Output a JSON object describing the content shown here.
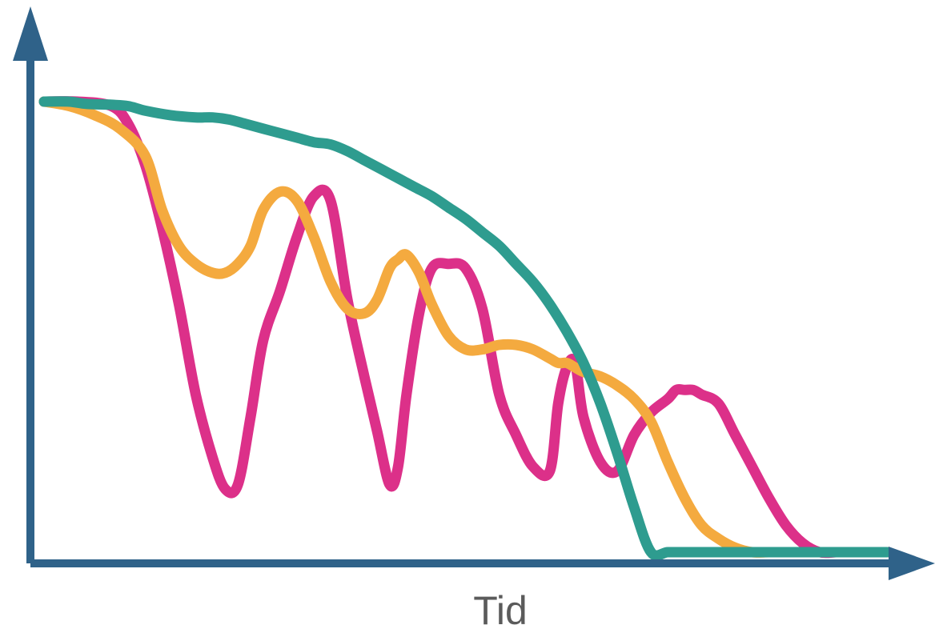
{
  "chart_data": {
    "type": "line",
    "title": "",
    "xlabel": "Tid",
    "ylabel": "",
    "grid": false,
    "legend": "none",
    "xlim": [
      0,
      100
    ],
    "ylim": [
      0,
      100
    ],
    "axis_color": "#2f6289",
    "series": [
      {
        "color": "#dc3089",
        "x": [
          0,
          4,
          8,
          10,
          12,
          14,
          16,
          18,
          20,
          21.5,
          23,
          24.5,
          26,
          28,
          30,
          32,
          34,
          36,
          38,
          39.5,
          41,
          42,
          43,
          44.5,
          46,
          48,
          50,
          52,
          54,
          56,
          58,
          60,
          61,
          62,
          63,
          64,
          66,
          68,
          70,
          72,
          74,
          75,
          76,
          77,
          78,
          80,
          82,
          84,
          86,
          88,
          90,
          92,
          94,
          95,
          96,
          98,
          99,
          100
        ],
        "y": [
          100,
          100,
          99,
          95,
          86,
          72,
          55,
          35,
          21,
          14,
          15,
          30,
          47,
          58,
          70,
          79,
          78,
          56,
          39,
          27,
          15,
          19,
          35,
          53,
          63,
          64,
          63,
          54,
          35,
          26,
          19,
          18,
          33,
          41,
          42,
          30,
          20,
          18,
          26,
          31,
          34,
          36,
          36,
          36,
          35,
          33,
          26,
          19,
          12,
          6,
          2,
          0,
          0,
          0,
          0,
          0,
          0,
          0
        ]
      },
      {
        "color": "#f4aa3f",
        "x": [
          0,
          3,
          6,
          9,
          12,
          14,
          16,
          18,
          20,
          21.5,
          23,
          24.5,
          26,
          28,
          30,
          32,
          34,
          36,
          38,
          39.5,
          41,
          42,
          43,
          44.5,
          46,
          48,
          50,
          52,
          54,
          56,
          58,
          60,
          61,
          62,
          63,
          64,
          66,
          68,
          70,
          72,
          74,
          76,
          78,
          80,
          82,
          84,
          86,
          88,
          90,
          92,
          94,
          95,
          96,
          97,
          98,
          99,
          100
        ],
        "y": [
          100,
          99,
          97,
          94,
          88,
          76,
          68,
          64,
          62,
          62,
          64,
          68,
          76,
          80,
          78,
          70,
          60,
          54,
          53,
          56,
          63,
          65,
          66,
          62,
          55,
          48,
          45,
          45,
          46,
          46,
          45,
          43,
          42,
          42,
          41,
          40,
          39,
          37,
          34,
          29,
          20,
          12,
          6,
          3,
          1,
          0,
          0,
          0,
          0,
          0,
          0,
          0,
          0,
          0,
          0,
          0,
          0
        ]
      },
      {
        "color": "#2e9c8f",
        "x": [
          0,
          3,
          5,
          8,
          10,
          12,
          15,
          18,
          20,
          22,
          24,
          26,
          28,
          30,
          32,
          34,
          36,
          38,
          40,
          42,
          44,
          46,
          48,
          50,
          52,
          54,
          56,
          58,
          60,
          62,
          64,
          66,
          68,
          70,
          72,
          74,
          76,
          78,
          80,
          82,
          84,
          86,
          88,
          90,
          92,
          94,
          96,
          98,
          100
        ],
        "y": [
          100,
          100,
          99.5,
          99.3,
          99,
          98,
          97,
          96.5,
          96.5,
          96,
          95,
          94,
          93,
          92,
          91,
          90.5,
          89,
          87,
          85,
          83,
          81,
          79,
          76.5,
          74,
          71,
          68,
          64,
          60,
          55,
          49,
          42,
          33,
          22,
          10,
          0,
          0,
          0,
          0,
          0,
          0,
          0,
          0,
          0,
          0,
          0,
          0,
          0,
          0,
          0
        ]
      }
    ]
  }
}
